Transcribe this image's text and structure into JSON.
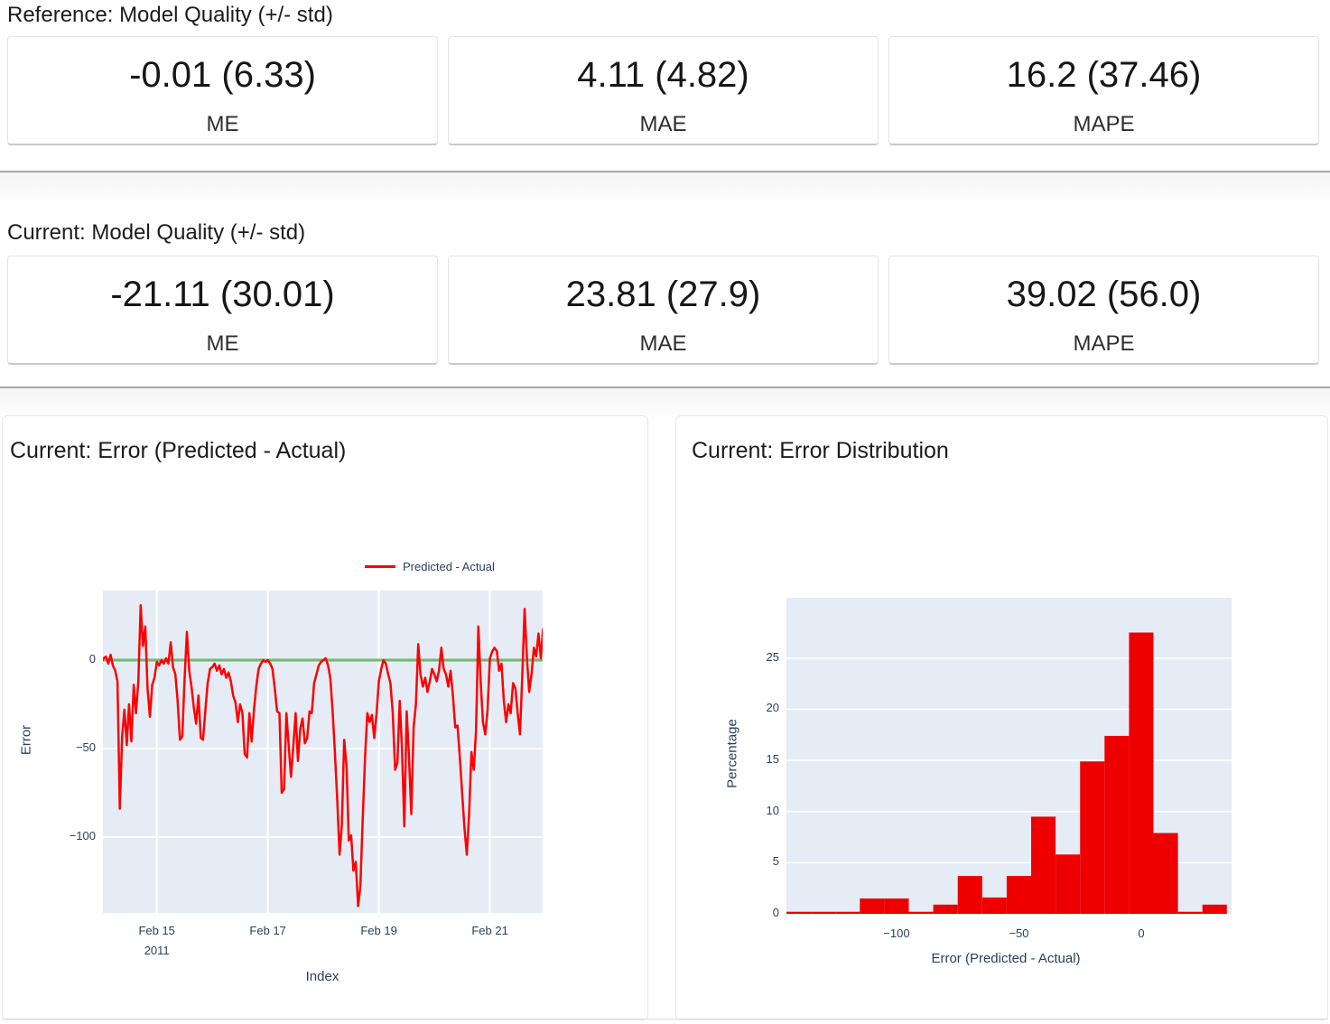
{
  "sections": [
    {
      "heading": "Reference: Model Quality (+/- std)",
      "metrics": [
        {
          "value": "-0.01 (6.33)",
          "label": "ME"
        },
        {
          "value": "4.11 (4.82)",
          "label": "MAE"
        },
        {
          "value": "16.2 (37.46)",
          "label": "MAPE"
        }
      ]
    },
    {
      "heading": "Current: Model Quality (+/- std)",
      "metrics": [
        {
          "value": "-21.11 (30.01)",
          "label": "ME"
        },
        {
          "value": "23.81 (27.9)",
          "label": "MAE"
        },
        {
          "value": "39.02 (56.0)",
          "label": "MAPE"
        }
      ]
    }
  ],
  "chart_data": [
    {
      "type": "line",
      "title": "Current: Error (Predicted - Actual)",
      "legend": "Predicted - Actual",
      "xlabel": "Index",
      "ylabel": "Error",
      "bg": "#e5ecf6",
      "grid_color": "#ffffff",
      "line_color": "#ff0000",
      "zero_line_color": "#008000",
      "x_unit": "hours from Feb 14 2011 00:00",
      "x_range": [
        0.7,
        190.8
      ],
      "y_range": [
        -142.9,
        39.3
      ],
      "x_ticks": [
        {
          "pos": 24,
          "label": "Feb 15",
          "sub": "2011"
        },
        {
          "pos": 72,
          "label": "Feb 17"
        },
        {
          "pos": 120,
          "label": "Feb 19"
        },
        {
          "pos": 168,
          "label": "Feb 21"
        }
      ],
      "y_ticks": [
        0,
        -50,
        -100
      ],
      "values": [
        -1,
        1,
        2,
        -2,
        3,
        -3,
        -6,
        -12,
        -84,
        -43,
        -28,
        -48,
        -25,
        -46,
        -14,
        -30,
        -12,
        31,
        8,
        19,
        -16,
        -32,
        -14,
        -10,
        -1,
        -3,
        0,
        -2,
        1,
        -2,
        10,
        -4,
        -8,
        -23,
        -45,
        -43,
        -11,
        16,
        -6,
        -15,
        -27,
        -36,
        -20,
        -44,
        -45,
        -28,
        -13,
        -5,
        -4,
        -2,
        -6,
        -3,
        -8,
        -5,
        -10,
        -7,
        -12,
        -20,
        -24,
        -35,
        -25,
        -30,
        -53,
        -55,
        -30,
        -46,
        -28,
        -15,
        -5,
        -2,
        0,
        -1,
        0,
        -2,
        -5,
        -16,
        -29,
        -30,
        -75,
        -73,
        -30,
        -48,
        -66,
        -49,
        -30,
        -57,
        -39,
        -33,
        -47,
        -44,
        -29,
        -30,
        -13,
        -8,
        -3,
        -1,
        0,
        1,
        -3,
        -10,
        -29,
        -52,
        -79,
        -110,
        -93,
        -45,
        -60,
        -102,
        -99,
        -119,
        -114,
        -139,
        -128,
        -90,
        -55,
        -30,
        -35,
        -31,
        -44,
        -30,
        -12,
        -5,
        0,
        -2,
        -8,
        -13,
        -30,
        -62,
        -58,
        -23,
        -50,
        -94,
        -29,
        -54,
        -87,
        -38,
        -25,
        9,
        -8,
        -15,
        -10,
        -18,
        -12,
        -5,
        -8,
        -12,
        -6,
        7,
        -5,
        -8,
        -15,
        -6,
        -20,
        -38,
        -37,
        -55,
        -75,
        -95,
        -110,
        -88,
        -52,
        -62,
        -40,
        19,
        -12,
        -35,
        -42,
        -28,
        1,
        5,
        7,
        5,
        -6,
        -2,
        -23,
        -35,
        -25,
        -30,
        -13,
        -16,
        -30,
        -42,
        -8,
        29,
        1,
        -18,
        -8,
        7,
        2,
        15,
        1,
        18
      ]
    },
    {
      "type": "histogram",
      "title": "Current: Error Distribution",
      "xlabel": "Error (Predicted - Actual)",
      "ylabel": "Percentage",
      "bg": "#e5ecf6",
      "grid_color": "#ffffff",
      "bar_color": "#ee0000",
      "bin_start": -145,
      "bin_width": 10,
      "bin_values": [
        0.2,
        0.2,
        0.2,
        1.5,
        1.5,
        0.2,
        0.9,
        3.7,
        1.6,
        3.7,
        9.5,
        5.8,
        14.9,
        17.4,
        27.5,
        7.9,
        0.2,
        0.9
      ],
      "x_range": [
        -145,
        36.9
      ],
      "y_range": [
        0,
        30.9
      ],
      "x_ticks": [
        -100,
        -50,
        0
      ],
      "y_ticks": [
        0,
        5,
        10,
        15,
        20,
        25
      ]
    }
  ]
}
